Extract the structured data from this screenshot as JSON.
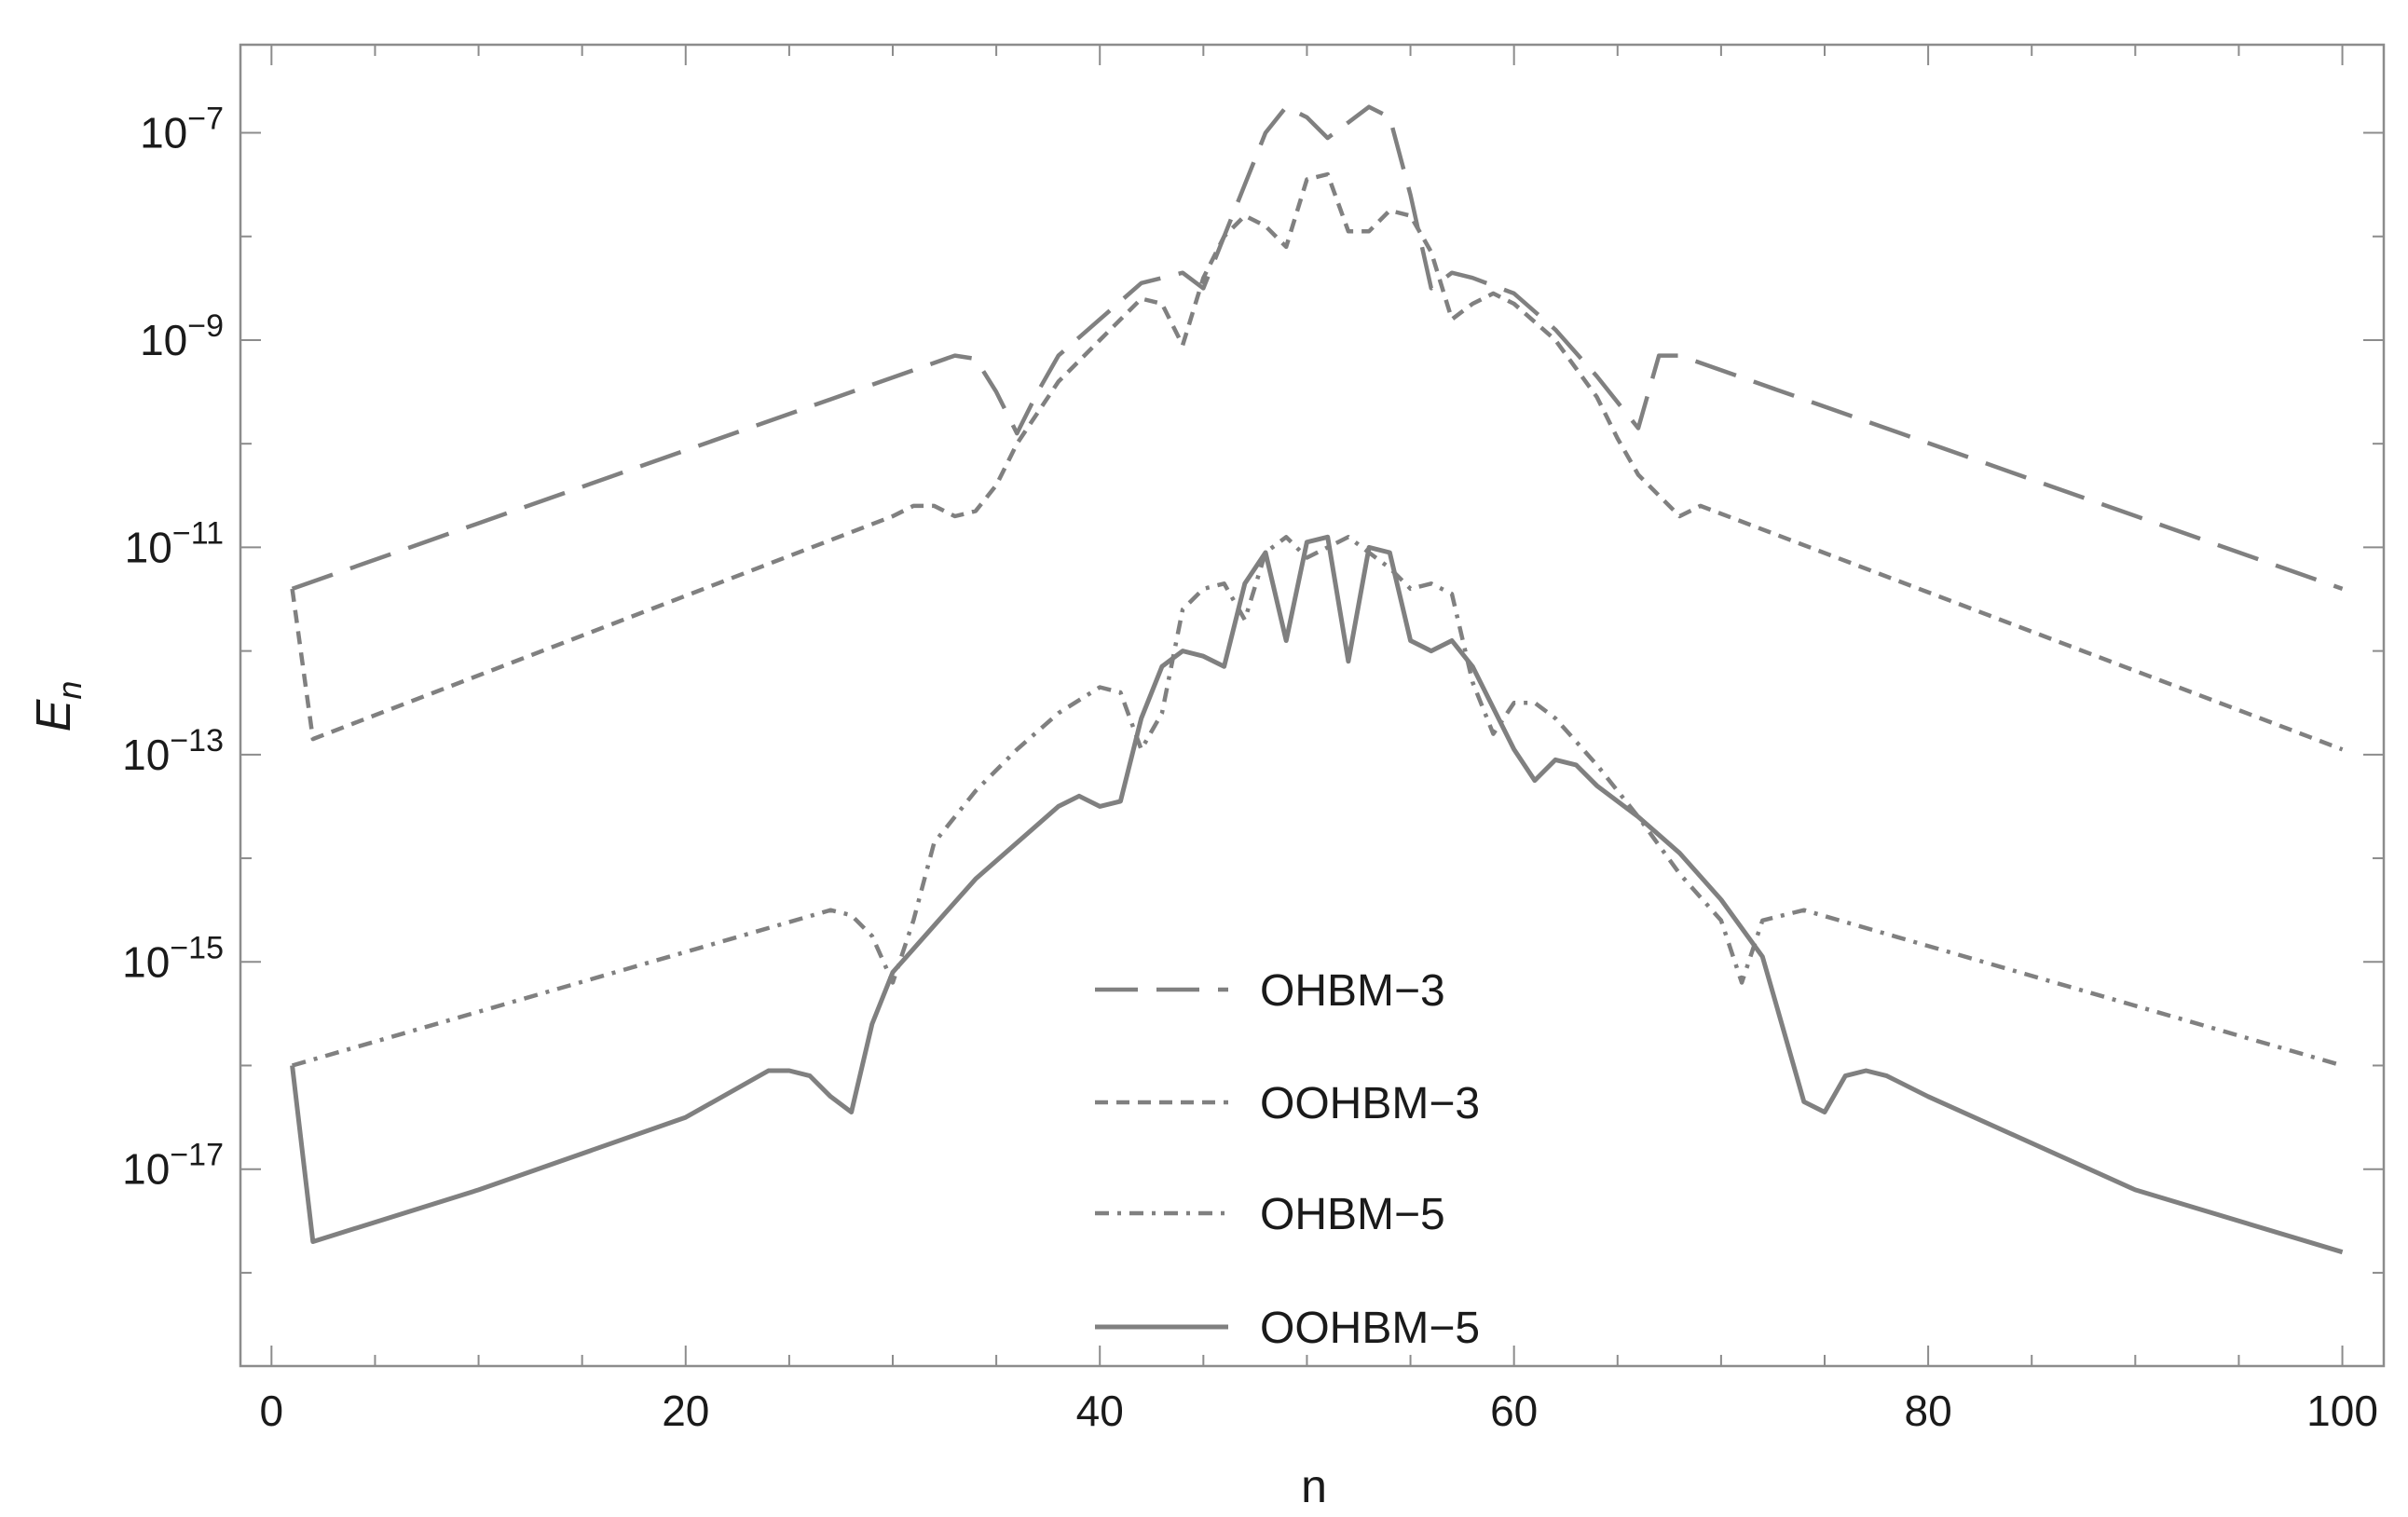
{
  "chart_data": {
    "type": "line",
    "xlabel": "n",
    "ylabel_main": "E",
    "ylabel_sub": "n",
    "xlim": [
      -1.5,
      102
    ],
    "ylim_log10": [
      -18.9,
      -6.15
    ],
    "y_scale": "log",
    "grid": false,
    "legend_position": "bottom-center",
    "x_ticks": [
      0,
      20,
      40,
      60,
      80,
      100
    ],
    "x_tick_labels": [
      "0",
      "20",
      "40",
      "60",
      "80",
      "100"
    ],
    "y_ticks_log10": [
      -7,
      -9,
      -11,
      -13,
      -15,
      -17
    ],
    "y_tick_labels": [
      {
        "base": "10",
        "exp": "−7"
      },
      {
        "base": "10",
        "exp": "−9"
      },
      {
        "base": "10",
        "exp": "−11"
      },
      {
        "base": "10",
        "exp": "−13"
      },
      {
        "base": "10",
        "exp": "−15"
      },
      {
        "base": "10",
        "exp": "−17"
      }
    ],
    "series": [
      {
        "name": "OHBM−3",
        "style": "long-dash",
        "points": [
          [
            1,
            -11.4
          ],
          [
            33,
            -9.15
          ],
          [
            34,
            -9.18
          ],
          [
            35,
            -9.5
          ],
          [
            36,
            -9.9
          ],
          [
            37,
            -9.5
          ],
          [
            38,
            -9.15
          ],
          [
            40,
            -8.8
          ],
          [
            42,
            -8.45
          ],
          [
            44,
            -8.35
          ],
          [
            45,
            -8.5
          ],
          [
            46,
            -8.0
          ],
          [
            47,
            -7.5
          ],
          [
            48,
            -7.0
          ],
          [
            49,
            -6.75
          ],
          [
            50,
            -6.85
          ],
          [
            51,
            -7.05
          ],
          [
            52,
            -6.9
          ],
          [
            53,
            -6.75
          ],
          [
            54,
            -6.85
          ],
          [
            55,
            -7.6
          ],
          [
            56,
            -8.5
          ],
          [
            57,
            -8.35
          ],
          [
            58,
            -8.4
          ],
          [
            60,
            -8.55
          ],
          [
            62,
            -8.9
          ],
          [
            64,
            -9.35
          ],
          [
            65,
            -9.6
          ],
          [
            66,
            -9.85
          ],
          [
            67,
            -9.15
          ],
          [
            68,
            -9.15
          ],
          [
            100,
            -11.4
          ]
        ]
      },
      {
        "name": "OOHBM−3",
        "style": "short-dash",
        "points": [
          [
            1,
            -11.4
          ],
          [
            2,
            -12.85
          ],
          [
            30,
            -10.7
          ],
          [
            31,
            -10.6
          ],
          [
            32,
            -10.6
          ],
          [
            33,
            -10.7
          ],
          [
            34,
            -10.65
          ],
          [
            35,
            -10.4
          ],
          [
            36,
            -10.0
          ],
          [
            38,
            -9.4
          ],
          [
            40,
            -9.0
          ],
          [
            42,
            -8.6
          ],
          [
            43,
            -8.65
          ],
          [
            44,
            -9.05
          ],
          [
            45,
            -8.4
          ],
          [
            46,
            -8.0
          ],
          [
            47,
            -7.8
          ],
          [
            48,
            -7.9
          ],
          [
            49,
            -8.1
          ],
          [
            50,
            -7.45
          ],
          [
            51,
            -7.4
          ],
          [
            52,
            -7.95
          ],
          [
            53,
            -7.95
          ],
          [
            54,
            -7.75
          ],
          [
            55,
            -7.8
          ],
          [
            56,
            -8.15
          ],
          [
            57,
            -8.8
          ],
          [
            58,
            -8.65
          ],
          [
            59,
            -8.55
          ],
          [
            60,
            -8.65
          ],
          [
            62,
            -9.0
          ],
          [
            64,
            -9.55
          ],
          [
            65,
            -9.95
          ],
          [
            66,
            -10.3
          ],
          [
            68,
            -10.7
          ],
          [
            69,
            -10.6
          ],
          [
            100,
            -12.95
          ]
        ]
      },
      {
        "name": "OHBM−5",
        "style": "dash-dot",
        "points": [
          [
            1,
            -16.0
          ],
          [
            27,
            -14.5
          ],
          [
            28,
            -14.55
          ],
          [
            29,
            -14.75
          ],
          [
            30,
            -15.2
          ],
          [
            31,
            -14.6
          ],
          [
            32,
            -13.85
          ],
          [
            34,
            -13.35
          ],
          [
            36,
            -12.95
          ],
          [
            38,
            -12.6
          ],
          [
            40,
            -12.35
          ],
          [
            41,
            -12.4
          ],
          [
            42,
            -12.95
          ],
          [
            43,
            -12.6
          ],
          [
            44,
            -11.6
          ],
          [
            45,
            -11.4
          ],
          [
            46,
            -11.35
          ],
          [
            47,
            -11.7
          ],
          [
            48,
            -11.05
          ],
          [
            49,
            -10.9
          ],
          [
            50,
            -11.1
          ],
          [
            51,
            -11.0
          ],
          [
            52,
            -10.9
          ],
          [
            53,
            -11.05
          ],
          [
            54,
            -11.2
          ],
          [
            55,
            -11.4
          ],
          [
            56,
            -11.35
          ],
          [
            57,
            -11.45
          ],
          [
            58,
            -12.3
          ],
          [
            59,
            -12.8
          ],
          [
            60,
            -12.5
          ],
          [
            61,
            -12.5
          ],
          [
            62,
            -12.65
          ],
          [
            64,
            -13.1
          ],
          [
            66,
            -13.6
          ],
          [
            68,
            -14.15
          ],
          [
            70,
            -14.6
          ],
          [
            71,
            -15.2
          ],
          [
            72,
            -14.6
          ],
          [
            73,
            -14.55
          ],
          [
            74,
            -14.5
          ],
          [
            100,
            -16.0
          ]
        ]
      },
      {
        "name": "OOHBM−5",
        "style": "solid",
        "points": [
          [
            1,
            -16.0
          ],
          [
            2,
            -17.7
          ],
          [
            10,
            -17.2
          ],
          [
            20,
            -16.5
          ],
          [
            24,
            -16.05
          ],
          [
            25,
            -16.05
          ],
          [
            26,
            -16.1
          ],
          [
            27,
            -16.3
          ],
          [
            28,
            -16.45
          ],
          [
            29,
            -15.6
          ],
          [
            30,
            -15.1
          ],
          [
            32,
            -14.65
          ],
          [
            34,
            -14.2
          ],
          [
            36,
            -13.85
          ],
          [
            38,
            -13.5
          ],
          [
            39,
            -13.4
          ],
          [
            40,
            -13.5
          ],
          [
            41,
            -13.45
          ],
          [
            42,
            -12.65
          ],
          [
            43,
            -12.15
          ],
          [
            44,
            -12.0
          ],
          [
            45,
            -12.05
          ],
          [
            46,
            -12.15
          ],
          [
            47,
            -11.35
          ],
          [
            48,
            -11.05
          ],
          [
            49,
            -11.9
          ],
          [
            50,
            -10.95
          ],
          [
            51,
            -10.9
          ],
          [
            52,
            -12.1
          ],
          [
            53,
            -11.0
          ],
          [
            54,
            -11.05
          ],
          [
            55,
            -11.9
          ],
          [
            56,
            -12.0
          ],
          [
            57,
            -11.9
          ],
          [
            58,
            -12.15
          ],
          [
            60,
            -12.95
          ],
          [
            61,
            -13.25
          ],
          [
            62,
            -13.05
          ],
          [
            63,
            -13.1
          ],
          [
            64,
            -13.3
          ],
          [
            66,
            -13.6
          ],
          [
            68,
            -13.95
          ],
          [
            70,
            -14.4
          ],
          [
            72,
            -14.95
          ],
          [
            73,
            -15.65
          ],
          [
            74,
            -16.35
          ],
          [
            75,
            -16.45
          ],
          [
            76,
            -16.1
          ],
          [
            77,
            -16.05
          ],
          [
            78,
            -16.1
          ],
          [
            80,
            -16.3
          ],
          [
            90,
            -17.2
          ],
          [
            100,
            -17.8
          ]
        ]
      }
    ]
  }
}
